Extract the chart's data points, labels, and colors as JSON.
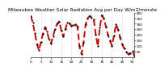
{
  "title": "Milwaukee Weather Solar Radiation Avg per Day W/m2/minute",
  "bg_color": "#ffffff",
  "line_color": "#cc0000",
  "marker_color": "#000000",
  "grid_color": "#bbbbbb",
  "ylim": [
    0,
    400
  ],
  "xlim": [
    0,
    51
  ],
  "x_values": [
    0,
    1,
    2,
    3,
    4,
    5,
    6,
    7,
    8,
    9,
    10,
    11,
    12,
    13,
    14,
    15,
    16,
    17,
    18,
    19,
    20,
    21,
    22,
    23,
    24,
    25,
    26,
    27,
    28,
    29,
    30,
    31,
    32,
    33,
    34,
    35,
    36,
    37,
    38,
    39,
    40,
    41,
    42,
    43,
    44,
    45,
    46,
    47,
    48,
    49,
    50,
    51
  ],
  "y_values": [
    370,
    310,
    215,
    120,
    65,
    140,
    210,
    270,
    230,
    160,
    125,
    190,
    255,
    300,
    320,
    240,
    185,
    250,
    310,
    305,
    280,
    290,
    295,
    275,
    100,
    30,
    130,
    295,
    348,
    370,
    355,
    340,
    205,
    100,
    265,
    375,
    348,
    275,
    200,
    150,
    105,
    195,
    295,
    248,
    180,
    120,
    80,
    50,
    30,
    38,
    58,
    18
  ],
  "vline_positions": [
    5,
    10,
    15,
    20,
    25,
    30,
    35,
    40,
    45,
    50
  ],
  "title_fontsize": 4.2,
  "tick_fontsize": 3.0,
  "linewidth": 1.4,
  "markersize": 1.2,
  "yticks": [
    50,
    100,
    150,
    200,
    250,
    300,
    350,
    400
  ],
  "xtick_step": 5
}
